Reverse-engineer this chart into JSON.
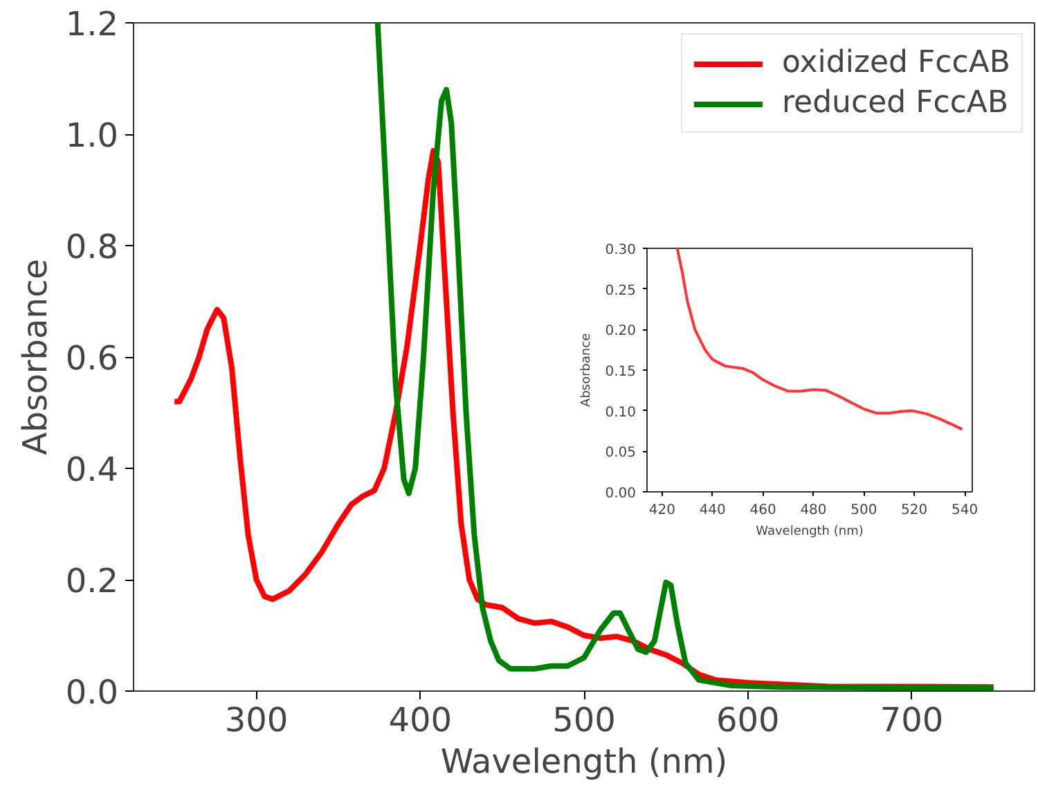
{
  "chart_data": [
    {
      "type": "line",
      "xlabel": "Wavelength (nm)",
      "ylabel": "Absorbance",
      "xlim": [
        225,
        775
      ],
      "ylim": [
        0,
        1.2
      ],
      "xticks": [
        300,
        400,
        500,
        600,
        700
      ],
      "yticks": [
        {
          "value": 0,
          "label": "0.0"
        },
        0.2,
        0.4,
        0.6,
        0.8,
        {
          "value": 1,
          "label": "1.0"
        },
        1.2
      ],
      "grid": false,
      "legend": "top right",
      "line_style": "solid",
      "marker": "none",
      "series": [
        {
          "name": "oxidized FccAB",
          "color": "#ff0000",
          "x": [
            250,
            253,
            260,
            265,
            270,
            276,
            280,
            285,
            290,
            295,
            300,
            305,
            310,
            320,
            330,
            340,
            350,
            358,
            365,
            372,
            378,
            385,
            392,
            400,
            405,
            408,
            411,
            415,
            420,
            425,
            430,
            435,
            440,
            450,
            460,
            470,
            480,
            490,
            500,
            510,
            520,
            530,
            540,
            550,
            560,
            570,
            580,
            600,
            650,
            700,
            750
          ],
          "values": [
            0.52,
            0.52,
            0.56,
            0.6,
            0.65,
            0.685,
            0.67,
            0.58,
            0.42,
            0.28,
            0.2,
            0.17,
            0.165,
            0.18,
            0.21,
            0.25,
            0.3,
            0.335,
            0.35,
            0.36,
            0.4,
            0.5,
            0.62,
            0.8,
            0.92,
            0.97,
            0.95,
            0.75,
            0.5,
            0.3,
            0.2,
            0.165,
            0.155,
            0.15,
            0.13,
            0.122,
            0.125,
            0.115,
            0.1,
            0.095,
            0.098,
            0.09,
            0.075,
            0.065,
            0.05,
            0.03,
            0.02,
            0.015,
            0.008,
            0.008,
            0.007
          ]
        },
        {
          "name": "reduced FccAB",
          "color": "#008000",
          "x": [
            374,
            380,
            385,
            390,
            393,
            397,
            402,
            408,
            413,
            416,
            419,
            423,
            428,
            433,
            438,
            443,
            448,
            455,
            470,
            480,
            490,
            500,
            510,
            518,
            522,
            527,
            533,
            538,
            543,
            547,
            550,
            553,
            557,
            562,
            570,
            590,
            620,
            700,
            750
          ],
          "values": [
            1.2,
            0.85,
            0.55,
            0.38,
            0.355,
            0.4,
            0.6,
            0.9,
            1.06,
            1.08,
            1.02,
            0.8,
            0.5,
            0.28,
            0.15,
            0.09,
            0.055,
            0.04,
            0.04,
            0.045,
            0.045,
            0.06,
            0.11,
            0.14,
            0.14,
            0.11,
            0.075,
            0.07,
            0.09,
            0.15,
            0.195,
            0.19,
            0.12,
            0.05,
            0.02,
            0.01,
            0.007,
            0.006,
            0.006
          ]
        }
      ]
    },
    {
      "type": "line",
      "xlabel": "Wavelength (nm)",
      "ylabel": "Absorbance",
      "xlim": [
        414,
        543
      ],
      "ylim": [
        0,
        0.3
      ],
      "xticks": [
        420,
        440,
        460,
        480,
        500,
        520,
        540
      ],
      "yticks": [
        {
          "value": 0,
          "label": "0.00"
        },
        0.05,
        {
          "value": 0.1,
          "label": "0.10"
        },
        0.15,
        {
          "value": 0.2,
          "label": "0.20"
        },
        0.25,
        {
          "value": 0.3,
          "label": "0.30"
        }
      ],
      "grid": false,
      "legend": false,
      "line_style": "solid",
      "marker": "none",
      "series": [
        {
          "color": "#ff3333",
          "x": [
            426,
            428,
            430,
            433,
            437,
            440,
            445,
            452,
            456,
            460,
            465,
            470,
            475,
            480,
            485,
            490,
            495,
            500,
            505,
            510,
            515,
            519,
            525,
            530,
            535,
            539
          ],
          "values": [
            0.3,
            0.27,
            0.235,
            0.2,
            0.175,
            0.163,
            0.155,
            0.152,
            0.147,
            0.138,
            0.13,
            0.124,
            0.124,
            0.126,
            0.125,
            0.118,
            0.11,
            0.102,
            0.097,
            0.097,
            0.099,
            0.1,
            0.096,
            0.09,
            0.083,
            0.077
          ]
        }
      ]
    }
  ]
}
